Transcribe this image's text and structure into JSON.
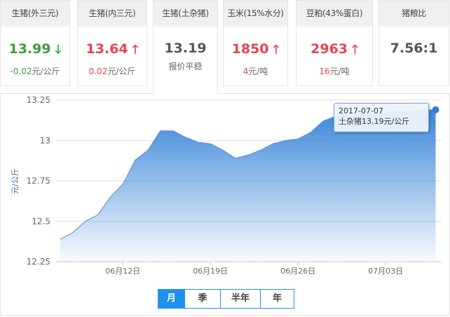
{
  "cards": [
    {
      "title": "生猪(外三元)",
      "value": "13.99",
      "change": "-0.02",
      "unit": "元/公斤",
      "trend": "down"
    },
    {
      "title": "生猪(内三元)",
      "value": "13.64",
      "change": "0.02",
      "unit": "元/公斤",
      "trend": "up"
    },
    {
      "title": "生猪(土杂猪)",
      "value": "13.19",
      "note": "报价平稳",
      "trend": "flat"
    },
    {
      "title": "玉米(15%水分)",
      "value": "1850",
      "change": "4",
      "unit": "元/吨",
      "trend": "up"
    },
    {
      "title": "豆粕(43%蛋白)",
      "value": "2963",
      "change": "16",
      "unit": "元/吨",
      "trend": "up"
    },
    {
      "title": "猪粮比",
      "value": "7.56:1",
      "trend": "flat"
    }
  ],
  "icons": {
    "up": "arrow-up-icon",
    "down": "arrow-down-icon"
  },
  "colors": {
    "up": "#e8444f",
    "down": "#3a9e3a",
    "accent": "#1e90ef",
    "area": "#3a86d8"
  },
  "tooltip": {
    "date": "2017-07-07",
    "text": "土杂猪13.19元/公斤"
  },
  "range_buttons": [
    {
      "label": "月",
      "active": true
    },
    {
      "label": "季"
    },
    {
      "label": "半年"
    },
    {
      "label": "年"
    }
  ],
  "chart_data": {
    "type": "area",
    "ylabel": "元/公斤",
    "ylim": [
      12.25,
      13.25
    ],
    "yticks": [
      "13.25",
      "13",
      "12.75",
      "12.5",
      "12.25"
    ],
    "xticks": [
      {
        "date": "2017-06-12",
        "label": "06月12日"
      },
      {
        "date": "2017-06-19",
        "label": "06月19日"
      },
      {
        "date": "2017-06-26",
        "label": "06月26日"
      },
      {
        "date": "2017-07-03",
        "label": "07月03日"
      }
    ],
    "start_date": "2017-06-07",
    "values": [
      12.39,
      12.43,
      12.5,
      12.54,
      12.65,
      12.73,
      12.88,
      12.94,
      13.06,
      13.06,
      13.02,
      12.99,
      12.98,
      12.94,
      12.89,
      12.91,
      12.94,
      12.98,
      13.0,
      13.01,
      13.05,
      13.12,
      13.15,
      13.16,
      13.16,
      13.17,
      13.17,
      13.18,
      13.18,
      13.19,
      13.19
    ],
    "grid": true
  }
}
